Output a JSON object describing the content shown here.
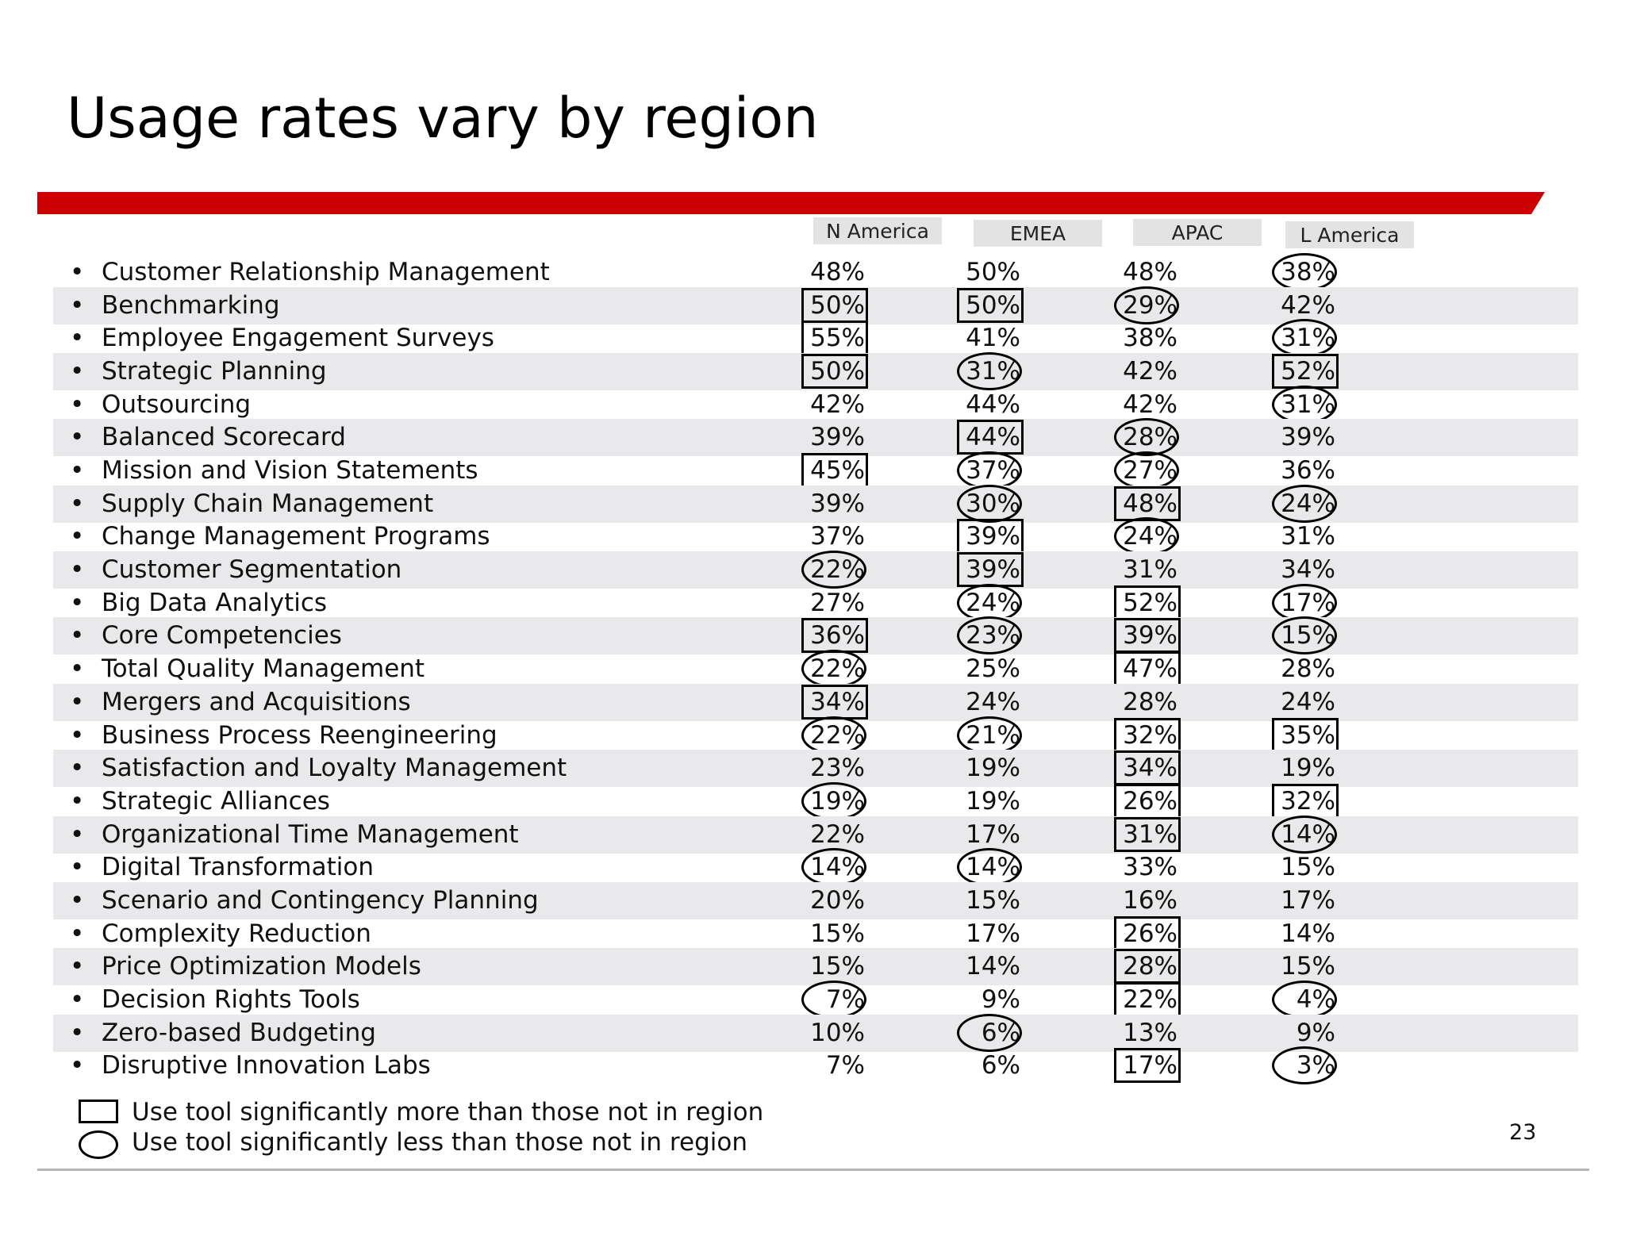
{
  "slide": {
    "title": "Usage rates vary by region",
    "page_number": "23"
  },
  "columns": [
    "N America",
    "EMEA",
    "APAC",
    "L America"
  ],
  "rows": [
    {
      "label": "Customer Relationship Management",
      "values": [
        "48%",
        "50%",
        "48%",
        "38%"
      ],
      "marks": [
        "",
        "",
        "",
        "oval"
      ]
    },
    {
      "label": "Benchmarking",
      "values": [
        "50%",
        "50%",
        "29%",
        "42%"
      ],
      "marks": [
        "box",
        "box",
        "oval",
        ""
      ]
    },
    {
      "label": "Employee Engagement Surveys",
      "values": [
        "55%",
        "41%",
        "38%",
        "31%"
      ],
      "marks": [
        "box",
        "",
        "",
        "oval"
      ]
    },
    {
      "label": "Strategic Planning",
      "values": [
        "50%",
        "31%",
        "42%",
        "52%"
      ],
      "marks": [
        "box",
        "oval",
        "",
        "box"
      ]
    },
    {
      "label": "Outsourcing",
      "values": [
        "42%",
        "44%",
        "42%",
        "31%"
      ],
      "marks": [
        "",
        "",
        "",
        "oval"
      ]
    },
    {
      "label": "Balanced Scorecard",
      "values": [
        "39%",
        "44%",
        "28%",
        "39%"
      ],
      "marks": [
        "",
        "box",
        "oval",
        ""
      ]
    },
    {
      "label": "Mission and Vision Statements",
      "values": [
        "45%",
        "37%",
        "27%",
        "36%"
      ],
      "marks": [
        "box",
        "oval",
        "oval",
        ""
      ]
    },
    {
      "label": "Supply Chain Management",
      "values": [
        "39%",
        "30%",
        "48%",
        "24%"
      ],
      "marks": [
        "",
        "oval",
        "box",
        "oval"
      ]
    },
    {
      "label": "Change Management Programs",
      "values": [
        "37%",
        "39%",
        "24%",
        "31%"
      ],
      "marks": [
        "",
        "box",
        "oval",
        ""
      ]
    },
    {
      "label": "Customer Segmentation",
      "values": [
        "22%",
        "39%",
        "31%",
        "34%"
      ],
      "marks": [
        "oval",
        "box",
        "",
        ""
      ]
    },
    {
      "label": "Big Data Analytics",
      "values": [
        "27%",
        "24%",
        "52%",
        "17%"
      ],
      "marks": [
        "",
        "oval",
        "box",
        "oval"
      ]
    },
    {
      "label": "Core Competencies",
      "values": [
        "36%",
        "23%",
        "39%",
        "15%"
      ],
      "marks": [
        "box",
        "oval",
        "box",
        "oval"
      ]
    },
    {
      "label": "Total Quality Management",
      "values": [
        "22%",
        "25%",
        "47%",
        "28%"
      ],
      "marks": [
        "oval",
        "",
        "box",
        ""
      ]
    },
    {
      "label": "Mergers and Acquisitions",
      "values": [
        "34%",
        "24%",
        "28%",
        "24%"
      ],
      "marks": [
        "box",
        "",
        "",
        ""
      ]
    },
    {
      "label": "Business Process Reengineering",
      "values": [
        "22%",
        "21%",
        "32%",
        "35%"
      ],
      "marks": [
        "oval",
        "oval",
        "box",
        "box"
      ]
    },
    {
      "label": "Satisfaction and Loyalty Management",
      "values": [
        "23%",
        "19%",
        "34%",
        "19%"
      ],
      "marks": [
        "",
        "",
        "box",
        ""
      ]
    },
    {
      "label": "Strategic Alliances",
      "values": [
        "19%",
        "19%",
        "26%",
        "32%"
      ],
      "marks": [
        "oval",
        "",
        "box",
        "box"
      ]
    },
    {
      "label": "Organizational Time Management",
      "values": [
        "22%",
        "17%",
        "31%",
        "14%"
      ],
      "marks": [
        "",
        "",
        "box",
        "oval"
      ]
    },
    {
      "label": "Digital Transformation",
      "values": [
        "14%",
        "14%",
        "33%",
        "15%"
      ],
      "marks": [
        "oval",
        "oval",
        "",
        ""
      ]
    },
    {
      "label": "Scenario and Contingency Planning",
      "values": [
        "20%",
        "15%",
        "16%",
        "17%"
      ],
      "marks": [
        "",
        "",
        "",
        ""
      ]
    },
    {
      "label": "Complexity Reduction",
      "values": [
        "15%",
        "17%",
        "26%",
        "14%"
      ],
      "marks": [
        "",
        "",
        "box",
        ""
      ]
    },
    {
      "label": "Price Optimization Models",
      "values": [
        "15%",
        "14%",
        "28%",
        "15%"
      ],
      "marks": [
        "",
        "",
        "box",
        ""
      ]
    },
    {
      "label": "Decision Rights Tools",
      "values": [
        "7%",
        "9%",
        "22%",
        "4%"
      ],
      "marks": [
        "oval",
        "",
        "box",
        "oval"
      ]
    },
    {
      "label": "Zero-based Budgeting",
      "values": [
        "10%",
        "6%",
        "13%",
        "9%"
      ],
      "marks": [
        "",
        "oval",
        "",
        ""
      ]
    },
    {
      "label": "Disruptive Innovation Labs",
      "values": [
        "7%",
        "6%",
        "17%",
        "3%"
      ],
      "marks": [
        "",
        "",
        "box",
        "oval"
      ]
    }
  ],
  "legend": {
    "box_text": "Use tool significantly more than those not in region",
    "oval_text": "Use tool significantly less than those not in region"
  },
  "colors": {
    "accent_bar": "#cc0000",
    "row_band": "#e9e9eb",
    "header_bg": "#e3e3e4"
  }
}
